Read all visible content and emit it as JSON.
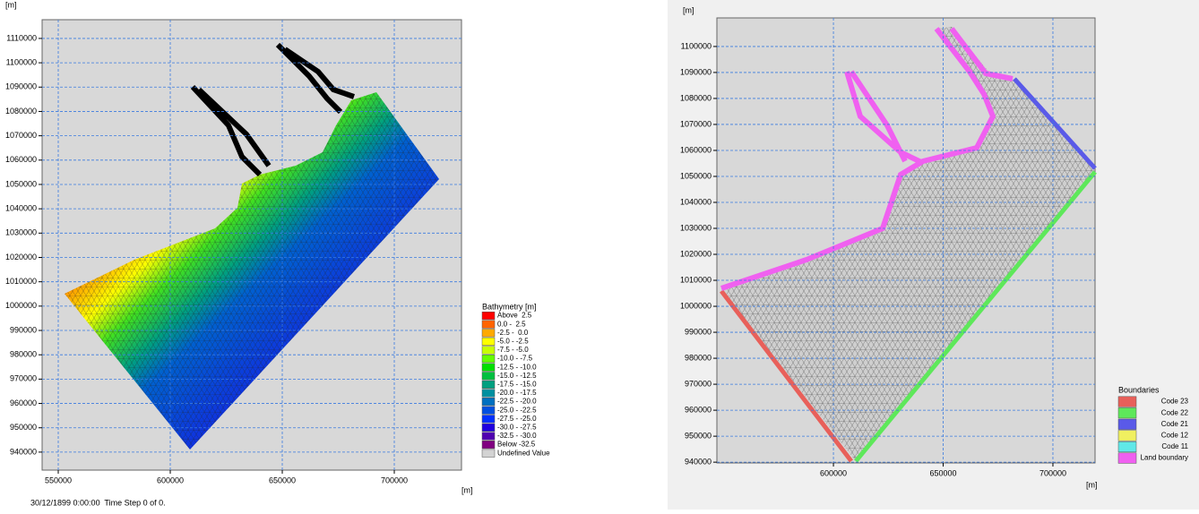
{
  "left_plot": {
    "y_unit": "[m]",
    "x_unit": "[m]",
    "xlim": [
      542800,
      730000
    ],
    "ylim": [
      932600,
      1117700
    ],
    "xticks": [
      550000,
      600000,
      650000,
      700000
    ],
    "yticks": [
      940000,
      950000,
      960000,
      970000,
      980000,
      990000,
      1000000,
      1010000,
      1020000,
      1030000,
      1040000,
      1050000,
      1060000,
      1070000,
      1080000,
      1090000,
      1100000,
      1110000
    ],
    "grid": true,
    "legend": {
      "title": "Bathymetry [m]",
      "items": [
        {
          "label": "Above  2.5",
          "color": "#ff0000"
        },
        {
          "label": "0.0 -  2.5",
          "color": "#ff6400"
        },
        {
          "label": "-2.5 -  0.0",
          "color": "#ffaa00"
        },
        {
          "label": "-5.0 - -2.5",
          "color": "#ffff00"
        },
        {
          "label": "-7.5 - -5.0",
          "color": "#c8ff00"
        },
        {
          "label": "-10.0 - -7.5",
          "color": "#64ff00"
        },
        {
          "label": "-12.5 - -10.0",
          "color": "#00e000"
        },
        {
          "label": "-15.0 - -12.5",
          "color": "#00c040"
        },
        {
          "label": "-17.5 - -15.0",
          "color": "#00a080"
        },
        {
          "label": "-20.0 - -17.5",
          "color": "#0090a0"
        },
        {
          "label": "-22.5 - -20.0",
          "color": "#0070c0"
        },
        {
          "label": "-25.0 - -22.5",
          "color": "#0050e0"
        },
        {
          "label": "-27.5 - -25.0",
          "color": "#0030ff"
        },
        {
          "label": "-30.0 - -27.5",
          "color": "#2000e0"
        },
        {
          "label": "-32.5 - -30.0",
          "color": "#5000b0"
        },
        {
          "label": "Below -32.5",
          "color": "#800080"
        },
        {
          "label": "Undefined Value",
          "color": "#d3d3d3"
        }
      ]
    },
    "status": "30/12/1899 0:00:00  Time Step 0 of 0."
  },
  "right_plot": {
    "y_unit": "[m]",
    "x_unit": "[m]",
    "xlim": [
      546900,
      719200
    ],
    "ylim": [
      939700,
      1111000
    ],
    "xticks": [
      600000,
      650000,
      700000
    ],
    "yticks": [
      940000,
      950000,
      960000,
      970000,
      980000,
      990000,
      1000000,
      1010000,
      1020000,
      1030000,
      1040000,
      1050000,
      1060000,
      1070000,
      1080000,
      1090000,
      1100000
    ],
    "grid": true,
    "legend": {
      "title": "Boundaries",
      "items": [
        {
          "label": "Code 23",
          "color": "#e8605a"
        },
        {
          "label": "Code 22",
          "color": "#5ee85a"
        },
        {
          "label": "Code 21",
          "color": "#5a5ae8"
        },
        {
          "label": "Code 12",
          "color": "#f0f060"
        },
        {
          "label": "Code 11",
          "color": "#60e8e8"
        },
        {
          "label": "Land boundary",
          "color": "#f060f0"
        }
      ]
    }
  }
}
